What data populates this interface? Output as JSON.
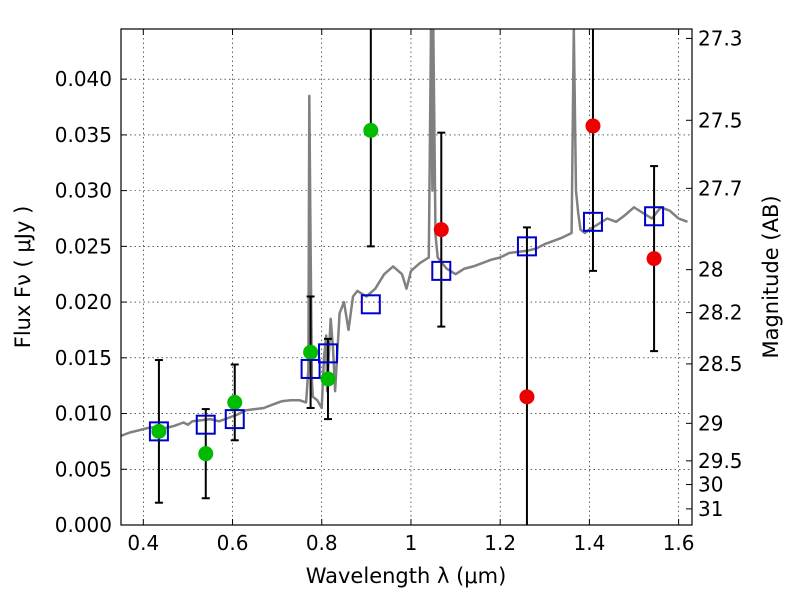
{
  "chart_data": {
    "type": "scatter",
    "title": "",
    "xlabel": "Wavelength  λ (μm)",
    "ylabel": "Flux  Fν  ( μJy )",
    "y2label": "Magnitude (AB)",
    "xlim": [
      0.35,
      1.63
    ],
    "ylim": [
      0.0,
      0.0445
    ],
    "grid": true,
    "legend": "none",
    "x_ticks": [
      {
        "value": 0.4,
        "label": "0.4"
      },
      {
        "value": 0.6,
        "label": "0.6"
      },
      {
        "value": 0.8,
        "label": "0.8"
      },
      {
        "value": 1.0,
        "label": "1"
      },
      {
        "value": 1.2,
        "label": "1.2"
      },
      {
        "value": 1.4,
        "label": "1.4"
      },
      {
        "value": 1.6,
        "label": "1.6"
      }
    ],
    "y_ticks": [
      {
        "value": 0.0,
        "label": "0.000"
      },
      {
        "value": 0.005,
        "label": "0.005"
      },
      {
        "value": 0.01,
        "label": "0.010"
      },
      {
        "value": 0.015,
        "label": "0.015"
      },
      {
        "value": 0.02,
        "label": "0.020"
      },
      {
        "value": 0.025,
        "label": "0.025"
      },
      {
        "value": 0.03,
        "label": "0.030"
      },
      {
        "value": 0.035,
        "label": "0.035"
      },
      {
        "value": 0.04,
        "label": "0.040"
      }
    ],
    "y2_ticks": [
      {
        "value": 27.3,
        "label": "27.3"
      },
      {
        "value": 27.5,
        "label": "27.5"
      },
      {
        "value": 27.7,
        "label": "27.7"
      },
      {
        "value": 28.0,
        "label": "28"
      },
      {
        "value": 28.2,
        "label": "28.2"
      },
      {
        "value": 28.5,
        "label": "28.5"
      },
      {
        "value": 29.0,
        "label": "29"
      },
      {
        "value": 29.5,
        "label": "29.5"
      },
      {
        "value": 30.0,
        "label": "30"
      },
      {
        "value": 31.0,
        "label": "31"
      }
    ],
    "model_spectrum": {
      "name": "model SED",
      "color": "#808080",
      "x": [
        0.35,
        0.37,
        0.39,
        0.41,
        0.43,
        0.45,
        0.47,
        0.49,
        0.5,
        0.51,
        0.53,
        0.55,
        0.57,
        0.59,
        0.61,
        0.63,
        0.65,
        0.67,
        0.69,
        0.71,
        0.73,
        0.75,
        0.765,
        0.77,
        0.772,
        0.775,
        0.778,
        0.78,
        0.79,
        0.8,
        0.805,
        0.81,
        0.812,
        0.815,
        0.82,
        0.825,
        0.83,
        0.84,
        0.85,
        0.86,
        0.87,
        0.88,
        0.9,
        0.92,
        0.94,
        0.96,
        0.98,
        0.99,
        1.0,
        1.02,
        1.04,
        1.045,
        1.048,
        1.05,
        1.055,
        1.06,
        1.08,
        1.1,
        1.12,
        1.14,
        1.16,
        1.18,
        1.2,
        1.22,
        1.24,
        1.26,
        1.28,
        1.3,
        1.32,
        1.34,
        1.36,
        1.365,
        1.37,
        1.375,
        1.38,
        1.39,
        1.4,
        1.42,
        1.44,
        1.46,
        1.48,
        1.5,
        1.52,
        1.54,
        1.56,
        1.58,
        1.6,
        1.62
      ],
      "y": [
        0.008,
        0.0083,
        0.0085,
        0.0087,
        0.0088,
        0.0087,
        0.0089,
        0.0092,
        0.009,
        0.0093,
        0.0094,
        0.0095,
        0.0093,
        0.0096,
        0.0099,
        0.0103,
        0.0104,
        0.0105,
        0.0108,
        0.0111,
        0.0112,
        0.0112,
        0.011,
        0.014,
        0.0385,
        0.025,
        0.013,
        0.0115,
        0.0112,
        0.0105,
        0.015,
        0.017,
        0.012,
        0.0145,
        0.0185,
        0.016,
        0.012,
        0.019,
        0.02,
        0.0175,
        0.0205,
        0.021,
        0.0205,
        0.0212,
        0.0225,
        0.0232,
        0.0225,
        0.0212,
        0.0228,
        0.0235,
        0.024,
        0.0445,
        0.03,
        0.0445,
        0.026,
        0.024,
        0.023,
        0.0225,
        0.023,
        0.0232,
        0.0235,
        0.0238,
        0.024,
        0.0244,
        0.0245,
        0.0246,
        0.0248,
        0.0252,
        0.0255,
        0.0258,
        0.0262,
        0.0445,
        0.03,
        0.028,
        0.0265,
        0.0262,
        0.0265,
        0.027,
        0.0275,
        0.0272,
        0.0278,
        0.0285,
        0.028,
        0.0275,
        0.0285,
        0.0282,
        0.0275,
        0.0272
      ]
    },
    "series": [
      {
        "name": "green points",
        "marker": "circle",
        "color": "#00bb00",
        "points": [
          {
            "x": 0.435,
            "y": 0.0084,
            "err": 0.0064
          },
          {
            "x": 0.54,
            "y": 0.0064,
            "err": 0.004
          },
          {
            "x": 0.605,
            "y": 0.011,
            "err": 0.0034
          },
          {
            "x": 0.775,
            "y": 0.0155,
            "err": 0.005
          },
          {
            "x": 0.814,
            "y": 0.0131,
            "err": 0.0036
          },
          {
            "x": 0.91,
            "y": 0.0354,
            "err": 0.0104
          }
        ]
      },
      {
        "name": "red points",
        "marker": "circle",
        "color": "#ee0000",
        "points": [
          {
            "x": 1.068,
            "y": 0.0265,
            "err": 0.0087
          },
          {
            "x": 1.26,
            "y": 0.0115,
            "err": 0.0152
          },
          {
            "x": 1.408,
            "y": 0.0358,
            "err": 0.013
          },
          {
            "x": 1.545,
            "y": 0.0239,
            "err": 0.0083
          }
        ]
      },
      {
        "name": "model photometry",
        "marker": "square",
        "color": "#0000cc",
        "points": [
          {
            "x": 0.435,
            "y": 0.0084
          },
          {
            "x": 0.54,
            "y": 0.009
          },
          {
            "x": 0.605,
            "y": 0.0095
          },
          {
            "x": 0.775,
            "y": 0.014
          },
          {
            "x": 0.814,
            "y": 0.0154
          },
          {
            "x": 0.91,
            "y": 0.0198
          },
          {
            "x": 1.068,
            "y": 0.0228
          },
          {
            "x": 1.26,
            "y": 0.025
          },
          {
            "x": 1.408,
            "y": 0.0272
          },
          {
            "x": 1.545,
            "y": 0.0277
          }
        ]
      }
    ]
  }
}
